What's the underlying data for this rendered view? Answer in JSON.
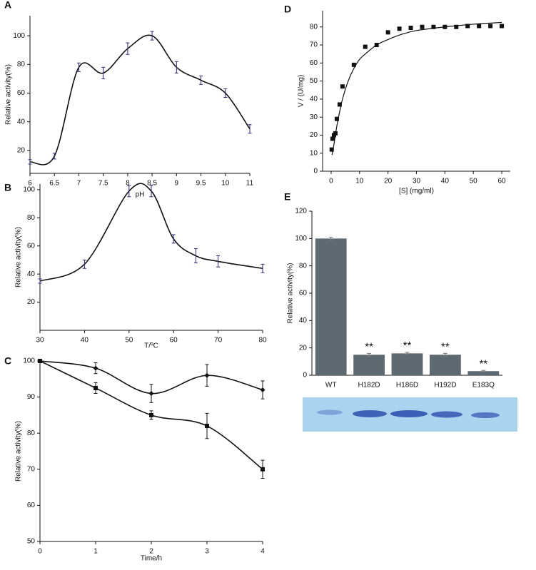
{
  "chart_data": [
    {
      "type": "line",
      "label": "A",
      "ylabel": "Relative activity(%)",
      "xlabel": "pH",
      "categories": [
        6,
        6.5,
        7,
        7.5,
        8,
        8.5,
        9,
        9.5,
        10,
        11
      ],
      "series": [
        {
          "color": "#111111",
          "error_color": "#2b2b7a",
          "values": [
            12,
            16,
            78,
            74,
            91,
            100,
            78,
            69,
            60,
            35
          ],
          "errors": [
            1.5,
            2,
            3,
            4,
            4,
            3,
            4,
            3,
            3,
            3
          ]
        }
      ],
      "ylim": [
        4,
        114
      ],
      "yticks": [
        20,
        40,
        60,
        80,
        100
      ]
    },
    {
      "type": "line",
      "label": "B",
      "ylabel": "Relative activity(%)",
      "xlabel": "T/ºC",
      "x": [
        30,
        40,
        50,
        55,
        60,
        65,
        70,
        80
      ],
      "series": [
        {
          "color": "#111111",
          "error_color": "#2b2b7a",
          "values": [
            35,
            47,
            99,
            99,
            65,
            53,
            49,
            44
          ],
          "errors": [
            1.5,
            3,
            4,
            4,
            3,
            5,
            4,
            3
          ]
        }
      ],
      "xlim": [
        30,
        80
      ],
      "xticks": [
        30,
        40,
        50,
        60,
        70,
        80
      ],
      "ylim": [
        0,
        104
      ],
      "yticks": [
        20,
        40,
        60,
        80,
        100
      ]
    },
    {
      "type": "line",
      "label": "C",
      "ylabel": "Relative activity(%)",
      "xlabel": "Time/h",
      "x": [
        0,
        1,
        2,
        3,
        4
      ],
      "series": [
        {
          "color": "#111111",
          "marker": "diamond",
          "values": [
            100,
            98,
            91,
            96,
            92
          ],
          "errors": [
            0,
            1.5,
            2.5,
            3,
            2.5
          ]
        },
        {
          "color": "#111111",
          "marker": "square",
          "values": [
            100,
            92.5,
            85,
            82,
            70
          ],
          "errors": [
            0,
            1.5,
            1.2,
            3.5,
            2.5
          ]
        }
      ],
      "xlim": [
        0,
        4
      ],
      "xticks": [
        0,
        1,
        2,
        3,
        4
      ],
      "ylim": [
        50,
        100
      ],
      "yticks": [
        50,
        60,
        70,
        80,
        90,
        100
      ]
    },
    {
      "type": "scatter",
      "label": "D",
      "ylabel": "V / (U/mg)",
      "xlabel": "[S] (mg/ml)",
      "series": [
        {
          "color": "#111111",
          "marker": "square",
          "x": [
            0.2,
            0.5,
            1,
            1.5,
            2,
            3,
            4,
            8,
            12,
            16,
            20,
            24,
            28,
            32,
            36,
            40,
            44,
            48,
            52,
            56,
            60
          ],
          "values": [
            12,
            18,
            20,
            21,
            29,
            37,
            47,
            59,
            69,
            70,
            77,
            79,
            79.5,
            80,
            80,
            80,
            80,
            80.5,
            80.5,
            80.5,
            80.5
          ]
        },
        {
          "color": "#111111",
          "marker": "none",
          "x": [
            0.3,
            1,
            2,
            3,
            4,
            6,
            8,
            10,
            12,
            16,
            20,
            25,
            30,
            40,
            50,
            60
          ],
          "values": [
            9,
            15,
            25,
            33,
            40,
            50,
            57,
            62,
            65,
            70,
            73,
            76,
            78,
            80,
            81.5,
            82.5
          ]
        }
      ],
      "xlim": [
        -3,
        63
      ],
      "xticks": [
        0,
        10,
        20,
        30,
        40,
        50,
        60
      ],
      "ylim": [
        0,
        89
      ],
      "yticks": [
        0,
        10,
        20,
        30,
        40,
        50,
        60,
        70,
        80
      ]
    },
    {
      "type": "bar",
      "label": "E",
      "ylabel": "Relative activity(%)",
      "categories": [
        "WT",
        "H182D",
        "H186D",
        "H192D",
        "E183Q"
      ],
      "values": [
        100,
        15,
        16,
        15,
        3
      ],
      "errors": [
        1,
        1,
        0.8,
        1,
        0.5
      ],
      "value_annotations": [
        null,
        "**",
        "**",
        "**",
        "**"
      ],
      "color": "#5e6a72",
      "ylim": [
        0,
        120
      ],
      "yticks": [
        0,
        20,
        40,
        60,
        80,
        100,
        120
      ]
    }
  ]
}
